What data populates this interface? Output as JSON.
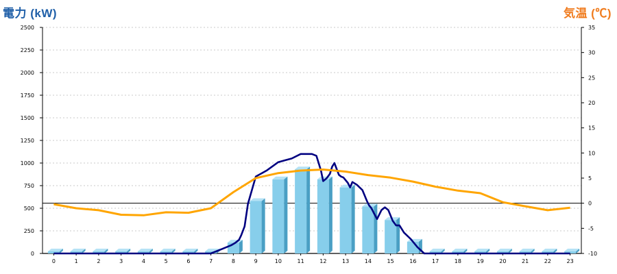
{
  "left_axis_title": "電力 (kW)",
  "right_axis_title": "気温 (℃)",
  "colors": {
    "power_title": "#1f5fa8",
    "temp_title": "#f07c1e",
    "bars": "#87ceeb",
    "bars_dark": "#4a9fc4",
    "power_line": "#000080",
    "temp_line": "#ffa500"
  },
  "chart_data": {
    "type": "bar",
    "categories": [
      "0",
      "1",
      "2",
      "3",
      "4",
      "5",
      "6",
      "7",
      "8",
      "9",
      "10",
      "11",
      "12",
      "13",
      "14",
      "15",
      "16",
      "17",
      "18",
      "19",
      "20",
      "21",
      "22",
      "23"
    ],
    "ylim": [
      0,
      2500
    ],
    "yticks": [
      0,
      250,
      500,
      750,
      1000,
      1250,
      1500,
      1750,
      2000,
      2250,
      2500
    ],
    "y2lim": [
      -10,
      35
    ],
    "y2ticks": [
      -10,
      -5,
      0,
      5,
      10,
      15,
      20,
      25,
      30,
      35
    ],
    "grid": true,
    "series": [
      {
        "kind": "bar",
        "axis": "left",
        "values": [
          0,
          0,
          0,
          0,
          0,
          0,
          0,
          0,
          120,
          580,
          820,
          930,
          820,
          730,
          520,
          370,
          130,
          0,
          0,
          0,
          0,
          0,
          0,
          0
        ]
      },
      {
        "kind": "line",
        "axis": "left",
        "x": [
          0,
          7,
          7.5,
          7.9,
          8.1,
          8.25,
          8.35,
          8.5,
          8.65,
          9.0,
          9.5,
          10.0,
          10.3,
          10.6,
          11.0,
          11.3,
          11.5,
          11.7,
          11.9,
          12.0,
          12.15,
          12.3,
          12.4,
          12.5,
          12.7,
          12.8,
          12.9,
          13.1,
          13.2,
          13.3,
          13.5,
          13.75,
          13.95,
          14.05,
          14.15,
          14.25,
          14.4,
          14.6,
          14.75,
          14.9,
          15.1,
          15.25,
          15.4,
          15.6,
          15.9,
          16.2,
          16.5,
          17.0,
          23.0
        ],
        "y": [
          0,
          0,
          50,
          90,
          120,
          150,
          200,
          300,
          550,
          850,
          920,
          1010,
          1030,
          1050,
          1100,
          1100,
          1100,
          1080,
          920,
          800,
          830,
          880,
          960,
          1000,
          870,
          850,
          840,
          780,
          730,
          790,
          760,
          700,
          580,
          530,
          500,
          450,
          380,
          480,
          510,
          480,
          360,
          310,
          310,
          230,
          160,
          70,
          0,
          0,
          0
        ]
      },
      {
        "kind": "line",
        "axis": "right",
        "x": [
          0,
          1,
          2,
          3,
          4,
          5,
          6,
          7,
          8,
          9,
          10,
          11,
          12,
          13,
          14,
          15,
          16,
          17,
          18,
          19,
          20,
          21,
          22,
          23
        ],
        "y": [
          -0.2,
          -1.0,
          -1.4,
          -2.3,
          -2.4,
          -1.8,
          -1.9,
          -1.0,
          2.2,
          5.0,
          6.0,
          6.5,
          6.7,
          6.3,
          5.6,
          5.1,
          4.3,
          3.3,
          2.5,
          2.0,
          0.2,
          -0.6,
          -1.4,
          -0.9
        ]
      }
    ]
  }
}
